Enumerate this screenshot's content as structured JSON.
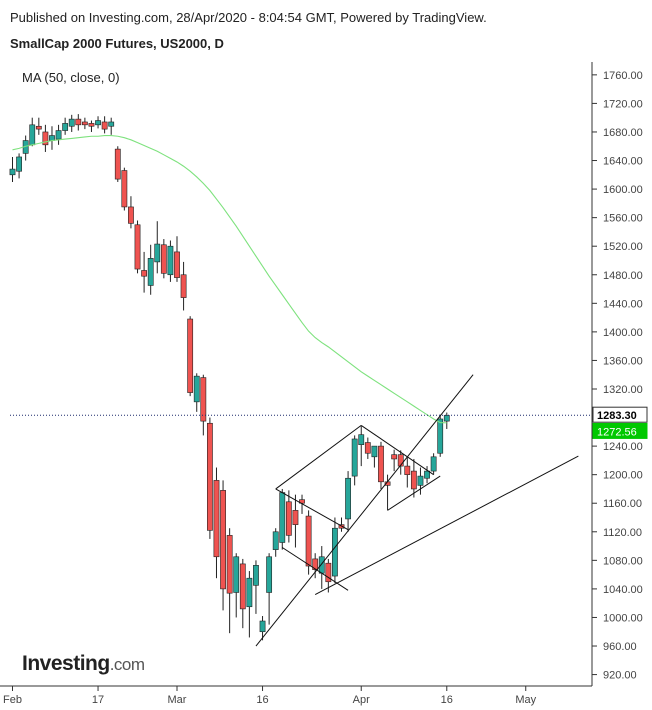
{
  "header": {
    "published": "Published on Investing.com, 28/Apr/2020 - 8:04:54 GMT, Powered by TradingView.",
    "instrument": "SmallCap 2000 Futures, US2000, D"
  },
  "indicator_label": "MA (50, close, 0)",
  "logo": {
    "text": "Investing",
    "suffix": ".com"
  },
  "colors": {
    "up": "#26a69a",
    "down": "#ef5350",
    "ma": "#7ee27e",
    "border": "#333333",
    "price_tag_bg": "#ffffff",
    "price_tag_fg": "#000000",
    "ma_tag_bg": "#00c800",
    "ma_tag_fg": "#ffffff"
  },
  "chart_data": {
    "type": "candlestick",
    "title": "SmallCap 2000 Futures, US2000, D",
    "x_ticks": [
      "Feb",
      "17",
      "Mar",
      "16",
      "Apr",
      "16",
      "May"
    ],
    "y_ticks": [
      920,
      960,
      1000,
      1040,
      1080,
      1120,
      1160,
      1200,
      1240,
      1280,
      1320,
      1360,
      1400,
      1440,
      1480,
      1520,
      1560,
      1600,
      1640,
      1680,
      1720,
      1760
    ],
    "ylim": [
      908,
      1790
    ],
    "last_price": "1283.30",
    "ma_value": "1272.56",
    "candles": [
      {
        "o": 1620,
        "h": 1645,
        "l": 1610,
        "c": 1628
      },
      {
        "o": 1625,
        "h": 1650,
        "l": 1615,
        "c": 1645
      },
      {
        "o": 1650,
        "h": 1675,
        "l": 1640,
        "c": 1668
      },
      {
        "o": 1662,
        "h": 1700,
        "l": 1660,
        "c": 1690
      },
      {
        "o": 1688,
        "h": 1700,
        "l": 1676,
        "c": 1684
      },
      {
        "o": 1680,
        "h": 1690,
        "l": 1652,
        "c": 1662
      },
      {
        "o": 1668,
        "h": 1688,
        "l": 1655,
        "c": 1675
      },
      {
        "o": 1670,
        "h": 1690,
        "l": 1662,
        "c": 1682
      },
      {
        "o": 1682,
        "h": 1700,
        "l": 1676,
        "c": 1692
      },
      {
        "o": 1688,
        "h": 1704,
        "l": 1680,
        "c": 1698
      },
      {
        "o": 1698,
        "h": 1705,
        "l": 1682,
        "c": 1690
      },
      {
        "o": 1694,
        "h": 1700,
        "l": 1684,
        "c": 1690
      },
      {
        "o": 1692,
        "h": 1696,
        "l": 1680,
        "c": 1688
      },
      {
        "o": 1690,
        "h": 1702,
        "l": 1685,
        "c": 1696
      },
      {
        "o": 1694,
        "h": 1702,
        "l": 1678,
        "c": 1684
      },
      {
        "o": 1688,
        "h": 1700,
        "l": 1676,
        "c": 1694
      },
      {
        "o": 1656,
        "h": 1660,
        "l": 1610,
        "c": 1614
      },
      {
        "o": 1626,
        "h": 1630,
        "l": 1570,
        "c": 1575
      },
      {
        "o": 1575,
        "h": 1590,
        "l": 1545,
        "c": 1552
      },
      {
        "o": 1550,
        "h": 1556,
        "l": 1482,
        "c": 1488
      },
      {
        "o": 1486,
        "h": 1512,
        "l": 1455,
        "c": 1478
      },
      {
        "o": 1465,
        "h": 1522,
        "l": 1452,
        "c": 1503
      },
      {
        "o": 1498,
        "h": 1555,
        "l": 1482,
        "c": 1523
      },
      {
        "o": 1522,
        "h": 1530,
        "l": 1475,
        "c": 1482
      },
      {
        "o": 1480,
        "h": 1528,
        "l": 1470,
        "c": 1520
      },
      {
        "o": 1512,
        "h": 1534,
        "l": 1470,
        "c": 1476
      },
      {
        "o": 1480,
        "h": 1498,
        "l": 1430,
        "c": 1448
      },
      {
        "o": 1418,
        "h": 1422,
        "l": 1310,
        "c": 1315
      },
      {
        "o": 1302,
        "h": 1342,
        "l": 1288,
        "c": 1338
      },
      {
        "o": 1336,
        "h": 1340,
        "l": 1255,
        "c": 1275
      },
      {
        "o": 1272,
        "h": 1280,
        "l": 1110,
        "c": 1122
      },
      {
        "o": 1192,
        "h": 1210,
        "l": 1055,
        "c": 1085
      },
      {
        "o": 1178,
        "h": 1192,
        "l": 1010,
        "c": 1040
      },
      {
        "o": 1115,
        "h": 1125,
        "l": 978,
        "c": 1034
      },
      {
        "o": 1035,
        "h": 1090,
        "l": 1000,
        "c": 1085
      },
      {
        "o": 1075,
        "h": 1082,
        "l": 985,
        "c": 1012
      },
      {
        "o": 1015,
        "h": 1065,
        "l": 972,
        "c": 1055
      },
      {
        "o": 1045,
        "h": 1080,
        "l": 1005,
        "c": 1073
      },
      {
        "o": 980,
        "h": 1002,
        "l": 968,
        "c": 995
      },
      {
        "o": 1035,
        "h": 1090,
        "l": 990,
        "c": 1085
      },
      {
        "o": 1095,
        "h": 1125,
        "l": 1085,
        "c": 1120
      },
      {
        "o": 1105,
        "h": 1180,
        "l": 1095,
        "c": 1175
      },
      {
        "o": 1162,
        "h": 1178,
        "l": 1105,
        "c": 1115
      },
      {
        "o": 1150,
        "h": 1172,
        "l": 1098,
        "c": 1130
      },
      {
        "o": 1165,
        "h": 1172,
        "l": 1145,
        "c": 1160
      },
      {
        "o": 1142,
        "h": 1150,
        "l": 1060,
        "c": 1072
      },
      {
        "o": 1082,
        "h": 1090,
        "l": 1055,
        "c": 1067
      },
      {
        "o": 1062,
        "h": 1100,
        "l": 1040,
        "c": 1085
      },
      {
        "o": 1076,
        "h": 1082,
        "l": 1035,
        "c": 1050
      },
      {
        "o": 1058,
        "h": 1140,
        "l": 1048,
        "c": 1125
      },
      {
        "o": 1130,
        "h": 1140,
        "l": 1120,
        "c": 1125
      },
      {
        "o": 1138,
        "h": 1205,
        "l": 1120,
        "c": 1195
      },
      {
        "o": 1198,
        "h": 1255,
        "l": 1185,
        "c": 1250
      },
      {
        "o": 1242,
        "h": 1268,
        "l": 1212,
        "c": 1256
      },
      {
        "o": 1245,
        "h": 1252,
        "l": 1222,
        "c": 1230
      },
      {
        "o": 1225,
        "h": 1240,
        "l": 1210,
        "c": 1240
      },
      {
        "o": 1240,
        "h": 1246,
        "l": 1180,
        "c": 1190
      },
      {
        "o": 1190,
        "h": 1200,
        "l": 1150,
        "c": 1185
      },
      {
        "o": 1228,
        "h": 1235,
        "l": 1205,
        "c": 1222
      },
      {
        "o": 1228,
        "h": 1234,
        "l": 1200,
        "c": 1212
      },
      {
        "o": 1212,
        "h": 1224,
        "l": 1182,
        "c": 1200
      },
      {
        "o": 1205,
        "h": 1222,
        "l": 1168,
        "c": 1180
      },
      {
        "o": 1185,
        "h": 1210,
        "l": 1172,
        "c": 1198
      },
      {
        "o": 1195,
        "h": 1212,
        "l": 1188,
        "c": 1205
      },
      {
        "o": 1205,
        "h": 1230,
        "l": 1200,
        "c": 1225
      },
      {
        "o": 1230,
        "h": 1284,
        "l": 1225,
        "c": 1278
      },
      {
        "o": 1275,
        "h": 1287,
        "l": 1264,
        "c": 1283
      }
    ],
    "ma_series": [
      1655,
      1657,
      1660,
      1662,
      1664,
      1666,
      1668,
      1669,
      1670,
      1671,
      1672,
      1673,
      1674,
      1674,
      1675,
      1675,
      1674,
      1672,
      1669,
      1665,
      1661,
      1657,
      1653,
      1648,
      1643,
      1638,
      1632,
      1625,
      1617,
      1608,
      1598,
      1586,
      1574,
      1561,
      1548,
      1534,
      1520,
      1506,
      1492,
      1478,
      1465,
      1452,
      1439,
      1426,
      1413,
      1401,
      1392,
      1385,
      1379,
      1372,
      1365,
      1358,
      1351,
      1344,
      1338,
      1332,
      1326,
      1320,
      1314,
      1308,
      1302,
      1296,
      1290,
      1284,
      1278,
      1273,
      1272.56
    ],
    "trendlines": [
      {
        "from": {
          "i": 37,
          "v": 960
        },
        "to": {
          "i": 70,
          "v": 1340
        }
      },
      {
        "from": {
          "i": 46,
          "v": 1032
        },
        "to": {
          "i": 86,
          "v": 1226
        }
      },
      {
        "from": {
          "i": 40,
          "v": 1180
        },
        "to": {
          "i": 51,
          "v": 1123
        }
      },
      {
        "from": {
          "i": 40,
          "v": 1180
        },
        "to": {
          "i": 53,
          "v": 1269
        }
      },
      {
        "from": {
          "i": 53,
          "v": 1269
        },
        "to": {
          "i": 64,
          "v": 1200
        }
      },
      {
        "from": {
          "i": 41,
          "v": 1098
        },
        "to": {
          "i": 51,
          "v": 1038
        }
      },
      {
        "from": {
          "i": 57,
          "v": 1150
        },
        "to": {
          "i": 65,
          "v": 1198
        }
      }
    ]
  }
}
